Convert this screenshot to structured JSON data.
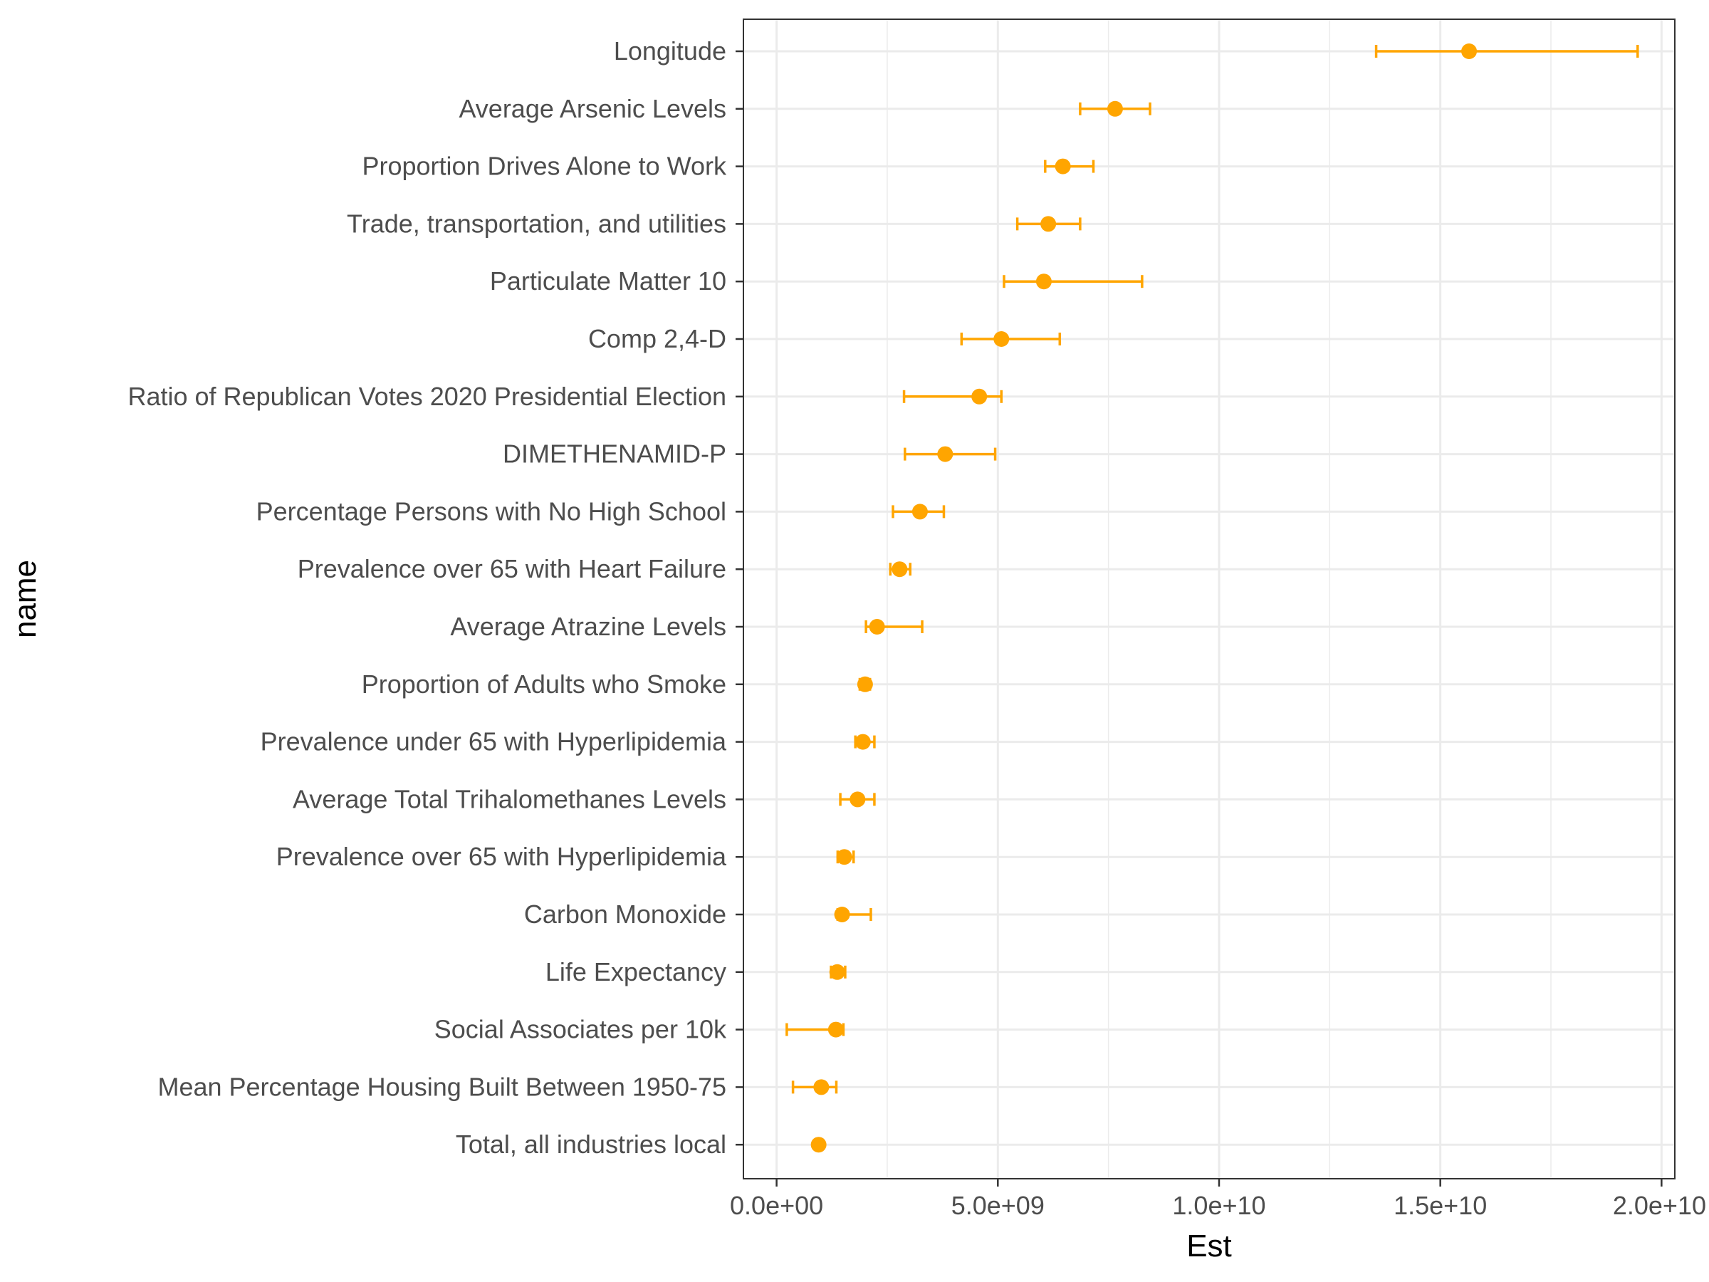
{
  "chart_data": {
    "type": "scatter",
    "subtype": "point-range",
    "xlabel": "Est",
    "ylabel": "name",
    "xlim": [
      -750000000.0,
      20300000000.0
    ],
    "x_ticks": [
      0,
      5000000000,
      10000000000,
      15000000000,
      20000000000
    ],
    "x_tick_labels": [
      "0.0e+00",
      "5.0e+09",
      "1.0e+10",
      "1.5e+10",
      "2.0e+10"
    ],
    "grid": true,
    "legend": "none",
    "point_color": "#FFA500",
    "categories": [
      "Longitude",
      "Average Arsenic Levels",
      "Proportion Drives Alone to Work",
      "Trade, transportation, and utilities",
      "Particulate Matter 10",
      "Comp 2,4-D",
      "Ratio of Republican Votes 2020 Presidential Election",
      "DIMETHENAMID-P",
      "Percentage Persons with No High School",
      "Prevalence over 65 with Heart Failure",
      "Average Atrazine Levels",
      "Proportion of Adults who Smoke",
      "Prevalence under 65 with Hyperlipidemia",
      "Average Total Trihalomethanes Levels",
      "Prevalence over 65 with Hyperlipidemia",
      "Carbon Monoxide",
      "Life Expectancy",
      "Social Associates per 10k",
      "Mean Percentage Housing Built Between 1950-75",
      "Total, all industries local"
    ],
    "estimates": [
      15650000000,
      7650000000,
      6470000000,
      6140000000,
      6040000000,
      5080000000,
      4580000000,
      3810000000,
      3240000000,
      2780000000,
      2270000000,
      2000000000,
      1950000000,
      1830000000,
      1530000000,
      1480000000,
      1370000000,
      1340000000,
      1010000000,
      950000000
    ],
    "lower": [
      13550000000,
      6860000000,
      6070000000,
      5440000000,
      5140000000,
      4180000000,
      2880000000,
      2900000000,
      2630000000,
      2570000000,
      2020000000,
      1880000000,
      1780000000,
      1440000000,
      1380000000,
      1380000000,
      1230000000,
      230000000,
      370000000,
      880000000
    ],
    "upper": [
      19460000000,
      8440000000,
      7160000000,
      6860000000,
      8260000000,
      6400000000,
      5080000000,
      4940000000,
      3780000000,
      3020000000,
      3290000000,
      2110000000,
      2210000000,
      2210000000,
      1740000000,
      2130000000,
      1550000000,
      1510000000,
      1350000000,
      1030000000
    ]
  }
}
